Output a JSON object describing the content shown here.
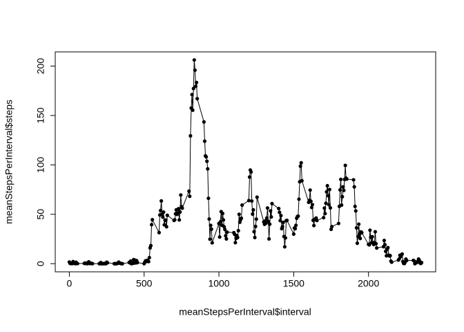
{
  "chart_data": {
    "type": "line",
    "xlabel": "meanStepsPerInterval$interval",
    "ylabel": "meanStepsPerInterval$steps",
    "color": "#000000",
    "xlim": [
      -94.2,
      2449.2
    ],
    "xticks": [
      0,
      500,
      1000,
      1500,
      2000
    ],
    "ylim": [
      -8.25,
      214.4
    ],
    "yticks": [
      0,
      50,
      100,
      150,
      200
    ],
    "x": [
      0,
      5,
      10,
      15,
      20,
      25,
      30,
      35,
      40,
      45,
      50,
      55,
      100,
      105,
      110,
      115,
      120,
      125,
      130,
      135,
      140,
      145,
      150,
      155,
      200,
      205,
      210,
      215,
      220,
      225,
      230,
      235,
      240,
      245,
      250,
      255,
      300,
      305,
      310,
      315,
      320,
      325,
      330,
      335,
      340,
      345,
      350,
      355,
      400,
      405,
      410,
      415,
      420,
      425,
      430,
      435,
      440,
      445,
      450,
      455,
      500,
      505,
      510,
      515,
      520,
      525,
      530,
      535,
      540,
      545,
      550,
      555,
      600,
      605,
      610,
      615,
      620,
      625,
      630,
      635,
      640,
      645,
      650,
      655,
      700,
      705,
      710,
      715,
      720,
      725,
      730,
      735,
      740,
      745,
      750,
      755,
      800,
      805,
      810,
      815,
      820,
      825,
      830,
      835,
      840,
      845,
      850,
      855,
      900,
      905,
      910,
      915,
      920,
      925,
      930,
      935,
      940,
      945,
      950,
      955,
      1000,
      1005,
      1010,
      1015,
      1020,
      1025,
      1030,
      1035,
      1040,
      1045,
      1050,
      1055,
      1100,
      1105,
      1110,
      1115,
      1120,
      1125,
      1130,
      1135,
      1140,
      1145,
      1150,
      1155,
      1200,
      1205,
      1210,
      1215,
      1220,
      1225,
      1230,
      1235,
      1240,
      1245,
      1250,
      1255,
      1300,
      1305,
      1310,
      1315,
      1320,
      1325,
      1330,
      1335,
      1340,
      1345,
      1350,
      1355,
      1400,
      1405,
      1410,
      1415,
      1420,
      1425,
      1430,
      1435,
      1440,
      1445,
      1450,
      1455,
      1500,
      1505,
      1510,
      1515,
      1520,
      1525,
      1530,
      1535,
      1540,
      1545,
      1550,
      1555,
      1600,
      1605,
      1610,
      1615,
      1620,
      1625,
      1630,
      1635,
      1640,
      1645,
      1650,
      1655,
      1700,
      1705,
      1710,
      1715,
      1720,
      1725,
      1730,
      1735,
      1740,
      1745,
      1750,
      1755,
      1800,
      1805,
      1810,
      1815,
      1820,
      1825,
      1830,
      1835,
      1840,
      1845,
      1850,
      1855,
      1900,
      1905,
      1910,
      1915,
      1920,
      1925,
      1930,
      1935,
      1940,
      1945,
      1950,
      1955,
      2000,
      2005,
      2010,
      2015,
      2020,
      2025,
      2030,
      2035,
      2040,
      2045,
      2050,
      2055,
      2100,
      2105,
      2110,
      2115,
      2120,
      2125,
      2130,
      2135,
      2140,
      2145,
      2150,
      2155,
      2200,
      2205,
      2210,
      2215,
      2220,
      2225,
      2230,
      2235,
      2240,
      2245,
      2250,
      2255,
      2300,
      2305,
      2310,
      2315,
      2320,
      2325,
      2330,
      2335,
      2340,
      2345,
      2350,
      2355
    ],
    "values": [
      1.7,
      0.3,
      0.1,
      0.2,
      0.1,
      2.1,
      0.5,
      0.9,
      0,
      1.5,
      0.3,
      0.1,
      0.3,
      0.7,
      0.2,
      0.3,
      0,
      1.1,
      1.8,
      0.2,
      0.2,
      0.4,
      0.3,
      0,
      0,
      0,
      1.1,
      0,
      0,
      0.1,
      0,
      0.2,
      0,
      0,
      1.5,
      0.9,
      0,
      0,
      0,
      0,
      0.2,
      0.6,
      1.6,
      0.6,
      0.5,
      0.1,
      0,
      0,
      1.2,
      0.9,
      2.6,
      0,
      0.3,
      0.4,
      4.1,
      0.7,
      3.5,
      0.8,
      3.1,
      1.1,
      0,
      1.6,
      3,
      2.2,
      3.3,
      3,
      2.1,
      6.1,
      16,
      18.3,
      39.5,
      44.5,
      31.5,
      49.3,
      53.8,
      63.5,
      50,
      47.1,
      52.2,
      39.3,
      44,
      44.2,
      37.4,
      49,
      43.8,
      44.4,
      50.5,
      54.5,
      49.9,
      51,
      55.7,
      44.3,
      52.3,
      69.5,
      57.8,
      56.2,
      73.4,
      68.2,
      129.4,
      157.5,
      171.2,
      155.4,
      177.3,
      206.2,
      195.9,
      179.6,
      183.4,
      167,
      143.5,
      124,
      109.1,
      108.1,
      103.7,
      96,
      66.2,
      45.2,
      24.8,
      38.8,
      35,
      21.1,
      40.6,
      27,
      42.4,
      52.7,
      38.9,
      50.8,
      44.3,
      37.4,
      34.7,
      28.3,
      25.1,
      31.9,
      31.4,
      29.7,
      21.3,
      25.5,
      28.4,
      26.5,
      33.4,
      50,
      42,
      44.6,
      46,
      59.3,
      63.9,
      87.7,
      94.8,
      92.8,
      63.4,
      50.2,
      54.5,
      32.4,
      26.5,
      37.7,
      45.1,
      67.3,
      42.3,
      39.9,
      43.3,
      41,
      46.2,
      56.4,
      42.8,
      25.1,
      40,
      53.5,
      47.3,
      60.8,
      55.8,
      52,
      43.6,
      48.7,
      35.5,
      37.5,
      41.8,
      27.5,
      17.1,
      26.1,
      43.6,
      43.8,
      30,
      36.1,
      35.5,
      38.8,
      46,
      47.8,
      48.1,
      65.3,
      82.9,
      98.7,
      102.1,
      84,
      62.1,
      64.1,
      74.5,
      63.2,
      56.9,
      59.8,
      43.9,
      38.6,
      44.7,
      45.5,
      46.2,
      43.7,
      46.6,
      56.3,
      50.7,
      61.2,
      72.7,
      78.9,
      68.9,
      59.7,
      75.1,
      56.5,
      34.8,
      37.5,
      40.7,
      58,
      74.7,
      85.3,
      59.3,
      67.8,
      77.7,
      74.2,
      85.3,
      99.5,
      86.6,
      85.6,
      84.9,
      77.8,
      58,
      53.4,
      36.3,
      20.7,
      27.4,
      40,
      30.2,
      25.5,
      32.2,
      31.4,
      19.6,
      19,
      33.9,
      26.8,
      21.2,
      27.3,
      21.3,
      19.5,
      21.3,
      32.3,
      20.2,
      15.9,
      17.2,
      23.5,
      19.2,
      12.5,
      8,
      14.7,
      16.3,
      8.7,
      7.8,
      8.1,
      2.6,
      1.5,
      3.7,
      4.8,
      8.5,
      7.1,
      8.7,
      9.8,
      2.2,
      0.3,
      0.1,
      1.6,
      4.6,
      3.3,
      3.3,
      2.8,
      0,
      0.8,
      1,
      1.6,
      2.6,
      4.7,
      3.3,
      0.6,
      0.2,
      1.1
    ]
  }
}
